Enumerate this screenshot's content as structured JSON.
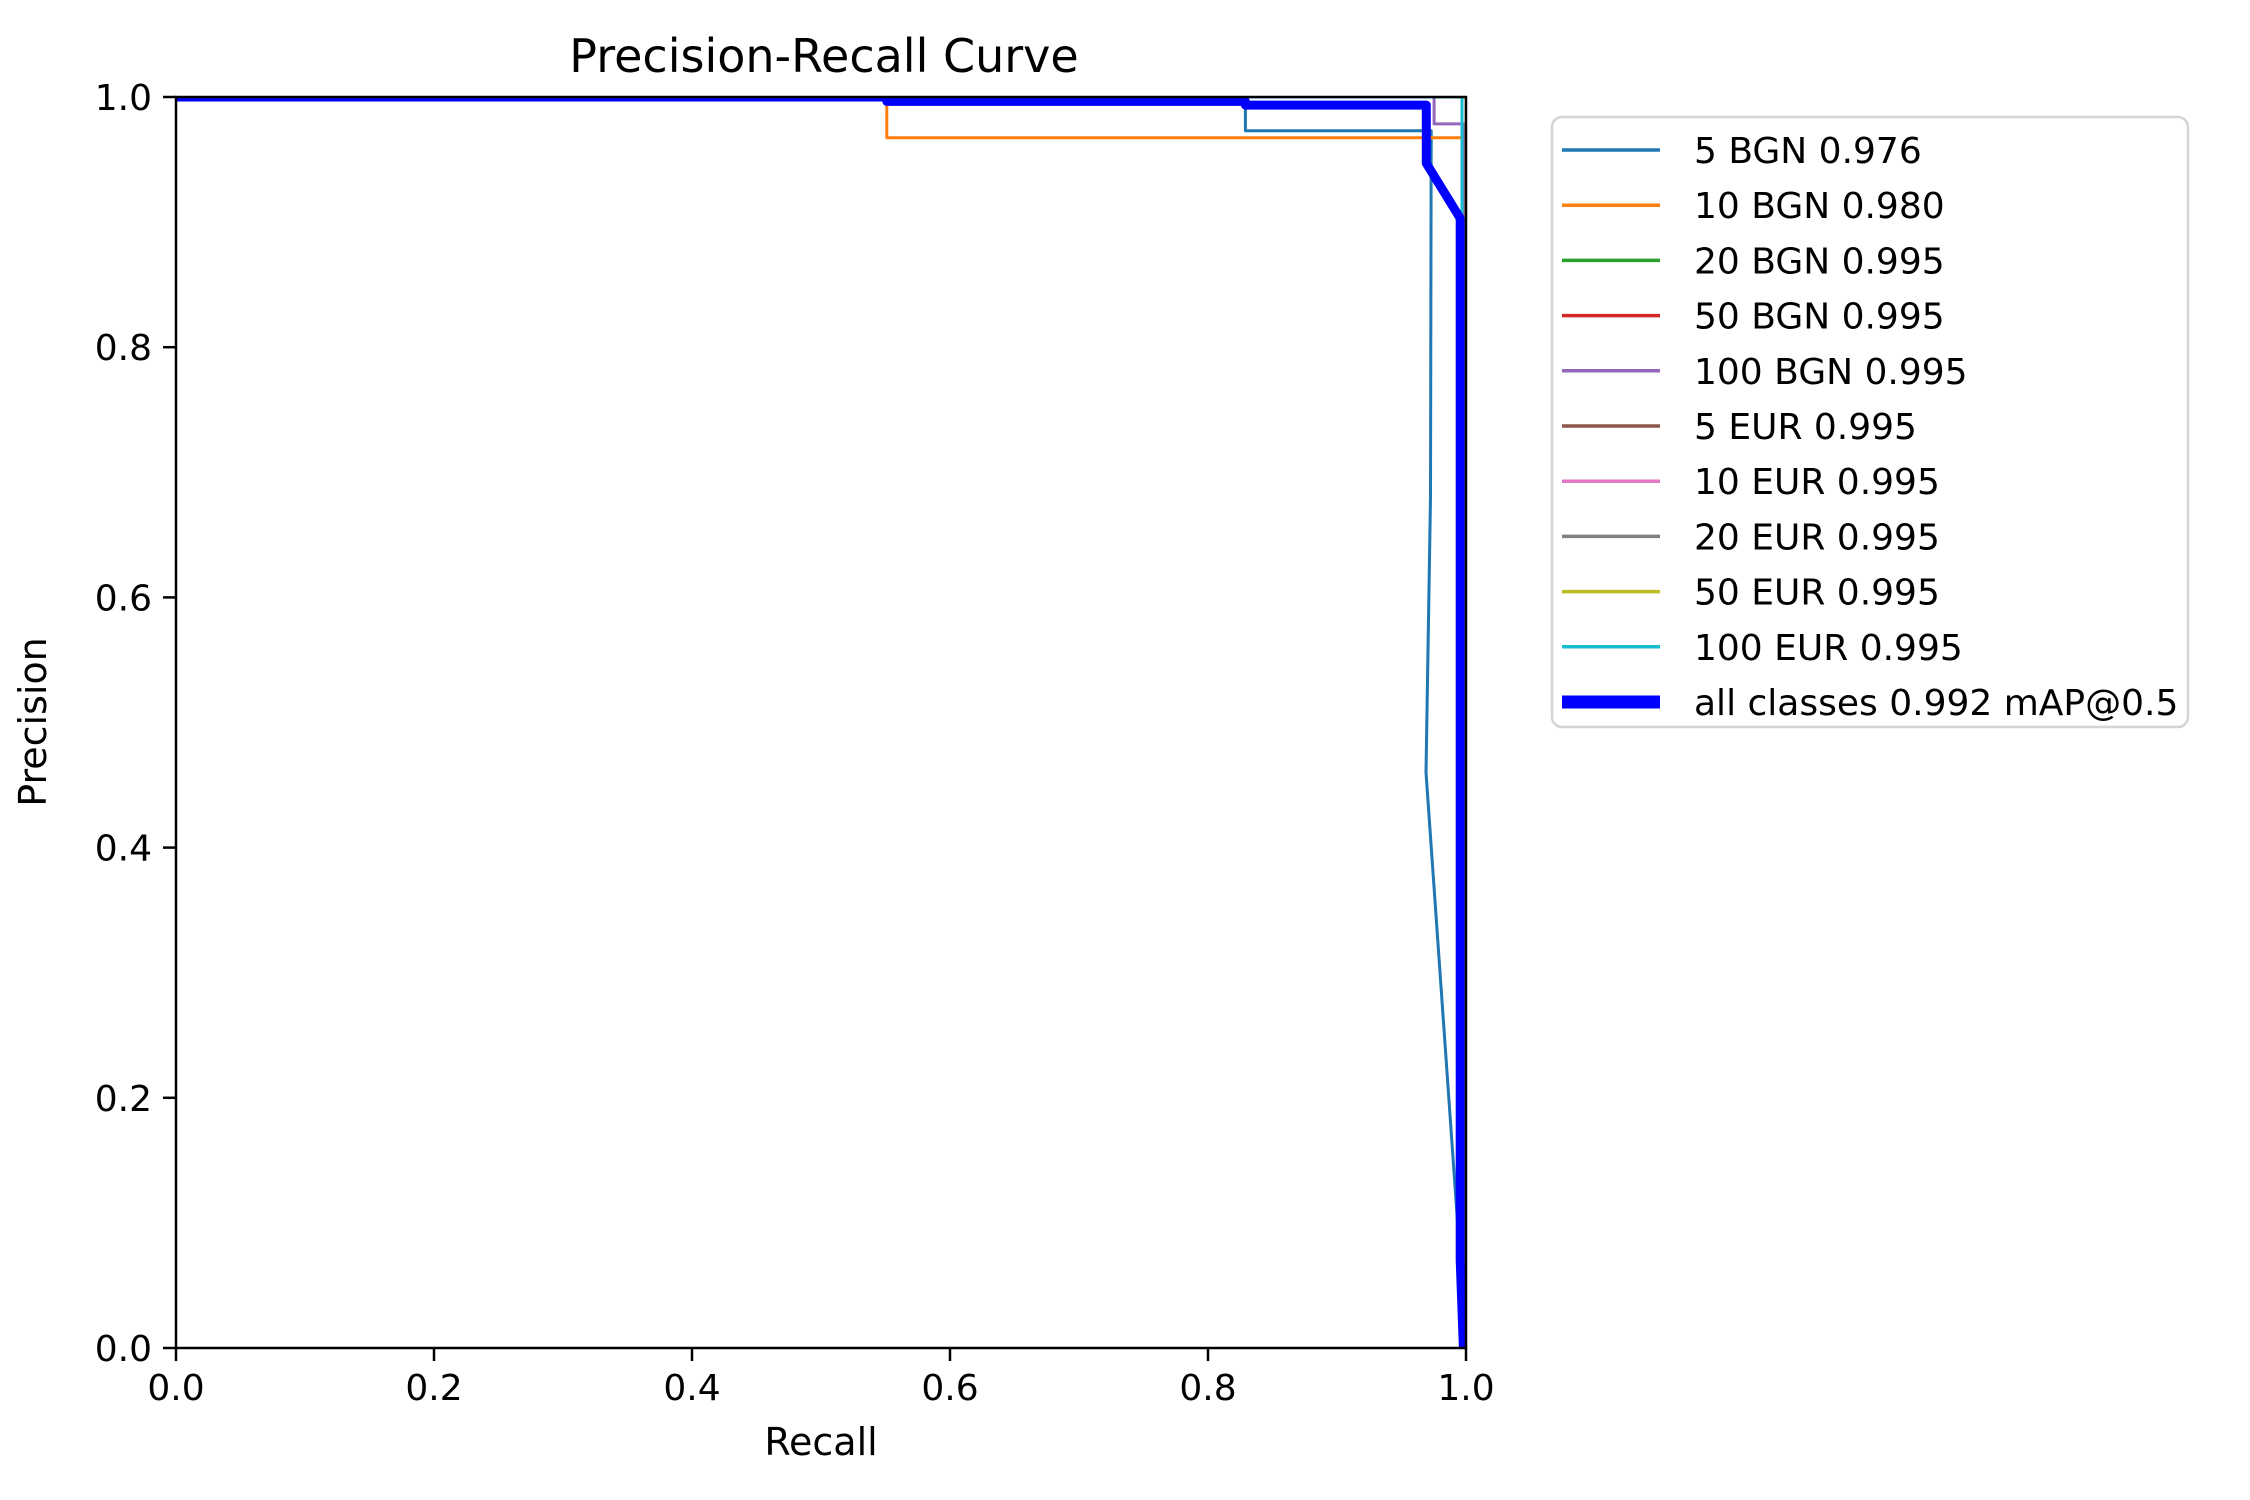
{
  "chart_data": {
    "type": "line",
    "title": "Precision-Recall Curve",
    "xlabel": "Recall",
    "ylabel": "Precision",
    "xlim": [
      0.0,
      1.0
    ],
    "ylim": [
      0.0,
      1.0
    ],
    "x_ticks": [
      "0.0",
      "0.2",
      "0.4",
      "0.6",
      "0.8",
      "1.0"
    ],
    "y_ticks": [
      "0.0",
      "0.2",
      "0.4",
      "0.6",
      "0.8",
      "1.0"
    ],
    "grid": false,
    "legend_position": "outside-upper-right",
    "colors": {
      "axis": "#000000",
      "legend_border": "#d4d4d4",
      "background": "#ffffff"
    },
    "series": [
      {
        "label": "5 BGN 0.976",
        "class_name": "5 BGN",
        "ap": 0.976,
        "color": "#1f77b4",
        "linewidth": 3,
        "points": [
          [
            0.0,
            0.9985
          ],
          [
            0.829,
            0.9985
          ],
          [
            0.829,
            0.973
          ],
          [
            0.973,
            0.973
          ],
          [
            0.9725,
            0.68
          ],
          [
            0.969,
            0.46
          ],
          [
            0.9955,
            0.07
          ],
          [
            0.998,
            0.0
          ]
        ]
      },
      {
        "label": "10 BGN 0.980",
        "class_name": "10 BGN",
        "ap": 0.98,
        "color": "#ff7f0e",
        "linewidth": 3,
        "points": [
          [
            0.0,
            1.0
          ],
          [
            0.551,
            1.0
          ],
          [
            0.551,
            0.9675
          ],
          [
            1.0,
            0.9675
          ],
          [
            1.0,
            0.0
          ]
        ]
      },
      {
        "label": "20 BGN 0.995",
        "class_name": "20 BGN",
        "ap": 0.995,
        "color": "#2ca02c",
        "linewidth": 3,
        "points": [
          [
            0.0,
            1.0
          ],
          [
            1.0,
            1.0
          ],
          [
            1.0,
            0.0
          ]
        ]
      },
      {
        "label": "50 BGN 0.995",
        "class_name": "50 BGN",
        "ap": 0.995,
        "color": "#d62728",
        "linewidth": 3,
        "points": [
          [
            0.0,
            1.0
          ],
          [
            1.0,
            1.0
          ],
          [
            1.0,
            0.0
          ]
        ]
      },
      {
        "label": "100 BGN 0.995",
        "class_name": "100 BGN",
        "ap": 0.995,
        "color": "#9467bd",
        "linewidth": 3,
        "points": [
          [
            0.0,
            1.0
          ],
          [
            0.9753,
            1.0
          ],
          [
            0.9753,
            0.9785
          ],
          [
            0.9985,
            0.9785
          ],
          [
            0.9985,
            0.0
          ]
        ]
      },
      {
        "label": "5 EUR 0.995",
        "class_name": "5 EUR",
        "ap": 0.995,
        "color": "#8c564b",
        "linewidth": 3,
        "points": [
          [
            0.0,
            1.0
          ],
          [
            1.0,
            1.0
          ],
          [
            1.0,
            0.0
          ]
        ]
      },
      {
        "label": "10 EUR 0.995",
        "class_name": "10 EUR",
        "ap": 0.995,
        "color": "#e377c2",
        "linewidth": 3,
        "points": [
          [
            0.0,
            1.0
          ],
          [
            1.0,
            1.0
          ],
          [
            1.0,
            0.0
          ]
        ]
      },
      {
        "label": "20 EUR 0.995",
        "class_name": "20 EUR",
        "ap": 0.995,
        "color": "#7f7f7f",
        "linewidth": 3,
        "points": [
          [
            0.0,
            1.0
          ],
          [
            1.0,
            1.0
          ],
          [
            1.0,
            0.0
          ]
        ]
      },
      {
        "label": "50 EUR 0.995",
        "class_name": "50 EUR",
        "ap": 0.995,
        "color": "#bcbd22",
        "linewidth": 3,
        "points": [
          [
            0.0,
            1.0
          ],
          [
            1.0,
            1.0
          ],
          [
            1.0,
            0.0
          ]
        ]
      },
      {
        "label": "100 EUR 0.995",
        "class_name": "100 EUR",
        "ap": 0.995,
        "color": "#17becf",
        "linewidth": 3,
        "points": [
          [
            0.0,
            1.0
          ],
          [
            0.9969,
            1.0
          ],
          [
            0.9969,
            0.0
          ]
        ]
      },
      {
        "label": "all classes 0.992 mAP@0.5",
        "class_name": "all classes",
        "ap": 0.992,
        "color": "#0000ff",
        "linewidth": 9,
        "points": [
          [
            0.0,
            1.0
          ],
          [
            0.551,
            1.0
          ],
          [
            0.551,
            0.9965
          ],
          [
            0.829,
            0.9965
          ],
          [
            0.829,
            0.9935
          ],
          [
            0.9692,
            0.9935
          ],
          [
            0.9692,
            0.947
          ],
          [
            0.9955,
            0.903
          ],
          [
            0.9955,
            0.07
          ],
          [
            0.998,
            0.0
          ]
        ]
      }
    ]
  }
}
